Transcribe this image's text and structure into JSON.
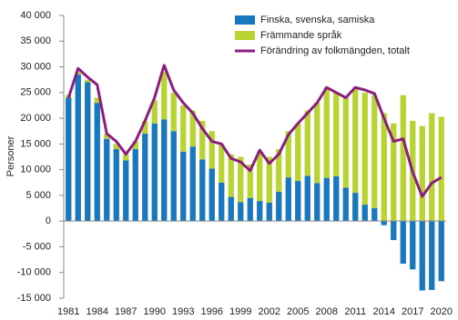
{
  "chart_data": {
    "type": "bar-line",
    "y_label": "Personer",
    "categories": [
      "1981",
      null,
      null,
      "1984",
      null,
      null,
      "1987",
      null,
      null,
      "1990",
      null,
      null,
      "1993",
      null,
      null,
      "1996",
      null,
      null,
      "1999",
      null,
      null,
      "2002",
      null,
      null,
      "2005",
      null,
      null,
      "2008",
      null,
      null,
      "2011",
      null,
      null,
      "2014",
      null,
      null,
      "2017",
      null,
      null,
      "2020"
    ],
    "series": [
      {
        "name": "Finska, svenska, samiska",
        "color": "#1877bd",
        "kind": "bar",
        "values": [
          24000,
          28500,
          27000,
          23000,
          16000,
          14000,
          11800,
          14000,
          17000,
          19000,
          19800,
          17500,
          13500,
          14500,
          12000,
          10200,
          7500,
          4700,
          3700,
          4500,
          3900,
          3600,
          5700,
          8500,
          7800,
          8800,
          7400,
          8400,
          8700,
          6500,
          5500,
          3200,
          2500,
          -800,
          -3700,
          -8300,
          -9400,
          -13500,
          -13400,
          -11700
        ]
      },
      {
        "name": "Främmande språk",
        "color": "#b7d433",
        "kind": "bar",
        "values": [
          500,
          500,
          500,
          1000,
          1000,
          1000,
          1200,
          1500,
          2500,
          4500,
          9200,
          7500,
          9000,
          7000,
          7500,
          7300,
          7500,
          8300,
          8800,
          6500,
          9600,
          8900,
          8300,
          9000,
          11200,
          12700,
          15600,
          17600,
          16300,
          17500,
          20500,
          21800,
          22000,
          21000,
          19000,
          24500,
          19500,
          18500,
          21000,
          20300
        ]
      },
      {
        "name": "Förändring av folkmängden, totalt",
        "color": "#8c1d7f",
        "kind": "line",
        "values": [
          24000,
          29700,
          28000,
          26500,
          17000,
          15500,
          13000,
          15500,
          19500,
          24000,
          30300,
          25500,
          23000,
          21000,
          18000,
          15500,
          15000,
          12200,
          11500,
          9800,
          13800,
          11200,
          13000,
          16800,
          19000,
          21000,
          23000,
          26000,
          25000,
          24000,
          26000,
          25500,
          24800,
          20000,
          15500,
          16000,
          9500,
          4800,
          7400,
          8500
        ]
      }
    ],
    "ylim": [
      -15000,
      40000
    ],
    "yticks": [
      {
        "value": -15000,
        "label": "-15 000"
      },
      {
        "value": -10000,
        "label": "-10 000"
      },
      {
        "value": -5000,
        "label": "-5 000"
      },
      0,
      {
        "value": 5000,
        "label": "5 000"
      },
      {
        "value": 10000,
        "label": "10 000"
      },
      {
        "value": 15000,
        "label": "15 000"
      },
      {
        "value": 20000,
        "label": "20 000"
      },
      {
        "value": 25000,
        "label": "25 000"
      },
      {
        "value": 30000,
        "label": "30 000"
      },
      {
        "value": 35000,
        "label": "35 000"
      },
      {
        "value": 40000,
        "label": "40 000"
      }
    ],
    "grid": false,
    "legend": "top-right"
  }
}
